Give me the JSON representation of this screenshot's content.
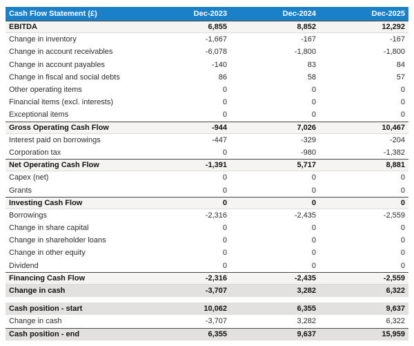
{
  "theme": {
    "header_bg": "#1a80c8",
    "header_text": "#ffffff",
    "subtotal_row_bg": "#f5f4f2",
    "emphasis_row_bg": "#e2e1df",
    "dark_border": "#474747",
    "light_border": "#dddcda"
  },
  "chart_data": {
    "type": "table",
    "title": "Cash Flow Statement (£)",
    "currency": "£",
    "columns": [
      "Dec-2023",
      "Dec-2024",
      "Dec-2025"
    ],
    "main_rows": [
      {
        "label": "EBITDA",
        "values": [
          "6,855",
          "8,852",
          "12,292"
        ],
        "style": "subtotal"
      },
      {
        "label": "Change in inventory",
        "values": [
          "-1,667",
          "-167",
          "-167"
        ],
        "style": "normal"
      },
      {
        "label": "Change in account receivables",
        "values": [
          "-6,078",
          "-1,800",
          "-1,800"
        ],
        "style": "normal"
      },
      {
        "label": "Change in account payables",
        "values": [
          "-140",
          "83",
          "84"
        ],
        "style": "normal"
      },
      {
        "label": "Change in fiscal and social debts",
        "values": [
          "86",
          "58",
          "57"
        ],
        "style": "normal"
      },
      {
        "label": "Other operating items",
        "values": [
          "0",
          "0",
          "0"
        ],
        "style": "normal"
      },
      {
        "label": "Financial items (excl. interests)",
        "values": [
          "0",
          "0",
          "0"
        ],
        "style": "normal"
      },
      {
        "label": "Exceptional items",
        "values": [
          "0",
          "0",
          "0"
        ],
        "style": "normal"
      },
      {
        "label": "Gross Operating Cash Flow",
        "values": [
          "-944",
          "7,026",
          "10,467"
        ],
        "style": "subtotal"
      },
      {
        "label": "Interest paid on borrowings",
        "values": [
          "-447",
          "-329",
          "-204"
        ],
        "style": "normal"
      },
      {
        "label": "Corporation tax",
        "values": [
          "0",
          "-980",
          "-1,382"
        ],
        "style": "normal"
      },
      {
        "label": "Net Operating Cash Flow",
        "values": [
          "-1,391",
          "5,717",
          "8,881"
        ],
        "style": "subtotal"
      },
      {
        "label": "Capex (net)",
        "values": [
          "0",
          "0",
          "0"
        ],
        "style": "normal"
      },
      {
        "label": "Grants",
        "values": [
          "0",
          "0",
          "0"
        ],
        "style": "normal"
      },
      {
        "label": "Investing Cash Flow",
        "values": [
          "0",
          "0",
          "0"
        ],
        "style": "subtotal"
      },
      {
        "label": "Borrowings",
        "values": [
          "-2,316",
          "-2,435",
          "-2,559"
        ],
        "style": "normal"
      },
      {
        "label": "Change in share capital",
        "values": [
          "0",
          "0",
          "0"
        ],
        "style": "normal"
      },
      {
        "label": "Change in shareholder loans",
        "values": [
          "0",
          "0",
          "0"
        ],
        "style": "normal"
      },
      {
        "label": "Change in other equity",
        "values": [
          "0",
          "0",
          "0"
        ],
        "style": "normal"
      },
      {
        "label": "Dividend",
        "values": [
          "0",
          "0",
          "0"
        ],
        "style": "normal"
      },
      {
        "label": "Financing Cash Flow",
        "values": [
          "-2,316",
          "-2,435",
          "-2,559"
        ],
        "style": "subtotal"
      },
      {
        "label": "Change in cash",
        "values": [
          "-3,707",
          "3,282",
          "6,322"
        ],
        "style": "emphasis"
      }
    ],
    "cash_position_rows": [
      {
        "label": "Cash position - start",
        "values": [
          "10,062",
          "6,355",
          "9,637"
        ],
        "style": "emphasis"
      },
      {
        "label": "Change in cash",
        "values": [
          "-3,707",
          "3,282",
          "6,322"
        ],
        "style": "normal"
      },
      {
        "label": "Cash position - end",
        "values": [
          "6,355",
          "9,637",
          "15,959"
        ],
        "style": "emphasis_top_border"
      }
    ]
  }
}
